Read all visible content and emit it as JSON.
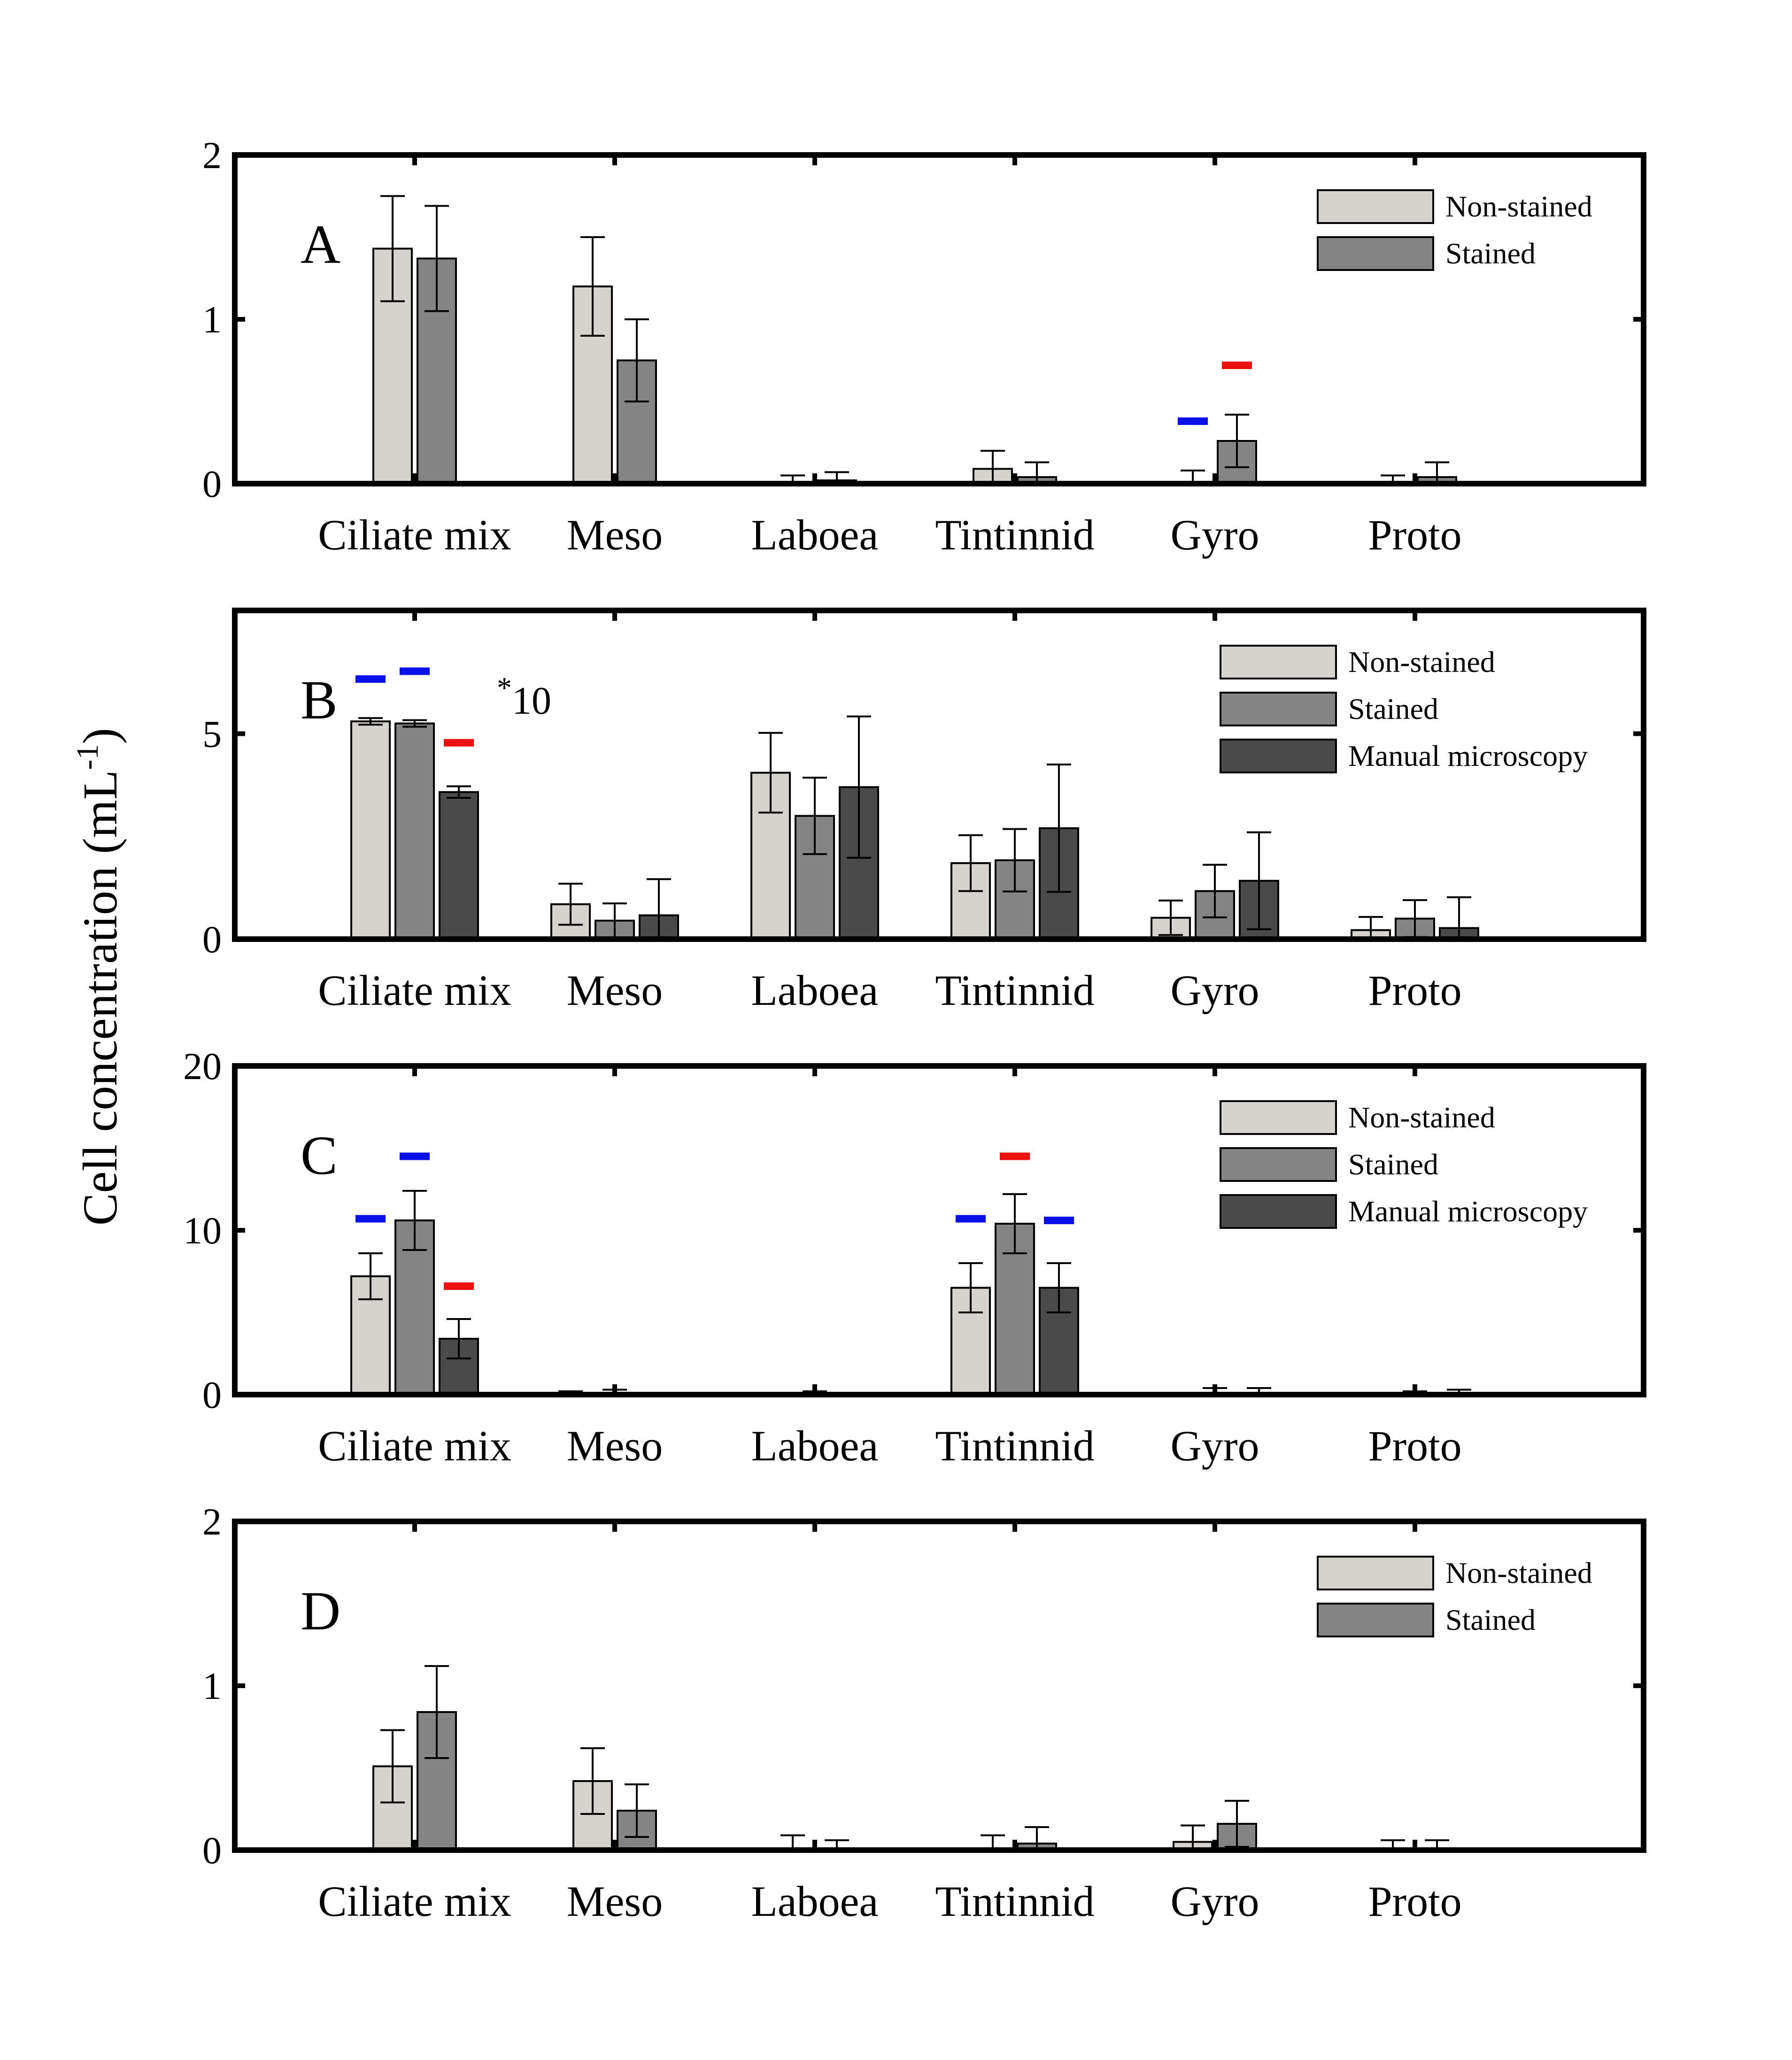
{
  "figure": {
    "ylabel_main": "Cell concentration (mL",
    "ylabel_sup": "-1",
    "ylabel_close": ")"
  },
  "colors": {
    "non_stained": "#d6d3ce",
    "stained": "#848484",
    "manual": "#4a4a4a",
    "marker_blue": "#0a10e8",
    "marker_red": "#ee1111"
  },
  "chart_data": [
    {
      "type": "bar",
      "panel": "A",
      "categories": [
        "Ciliate mix",
        "Meso",
        "Laboea",
        "Tintinnid",
        "Gyro",
        "Proto"
      ],
      "ylim": [
        0,
        2
      ],
      "yticks": [
        0,
        1,
        2
      ],
      "grid": false,
      "legend": "top-right",
      "series": [
        {
          "name": "Non-stained",
          "key": "non_stained",
          "values": [
            1.43,
            1.2,
            0.0,
            0.09,
            0.0,
            0.0
          ],
          "errors": [
            0.32,
            0.3,
            0.05,
            0.11,
            0.08,
            0.05
          ]
        },
        {
          "name": "Stained",
          "key": "stained",
          "values": [
            1.37,
            0.75,
            0.02,
            0.04,
            0.26,
            0.04
          ],
          "errors": [
            0.32,
            0.25,
            0.05,
            0.09,
            0.16,
            0.09
          ]
        }
      ],
      "markers": [
        {
          "category": 4,
          "series": 0,
          "value": 0.38,
          "color": "marker_blue"
        },
        {
          "category": 4,
          "series": 1,
          "value": 0.72,
          "color": "marker_red"
        }
      ]
    },
    {
      "type": "bar",
      "panel": "B",
      "categories": [
        "Ciliate mix",
        "Meso",
        "Laboea",
        "Tintinnid",
        "Gyro",
        "Proto"
      ],
      "ylim": [
        0,
        8
      ],
      "yticks": [
        0,
        5
      ],
      "grid": false,
      "legend": "top-right",
      "annotation": {
        "star": "*",
        "text": "10"
      },
      "series": [
        {
          "name": "Non-stained",
          "key": "non_stained",
          "values": [
            5.3,
            0.85,
            4.05,
            1.85,
            0.52,
            0.22
          ],
          "errors": [
            0.08,
            0.5,
            0.97,
            0.68,
            0.42,
            0.32
          ]
        },
        {
          "name": "Stained",
          "key": "stained",
          "values": [
            5.25,
            0.45,
            3.0,
            1.92,
            1.17,
            0.5
          ],
          "errors": [
            0.08,
            0.42,
            0.93,
            0.76,
            0.64,
            0.45
          ]
        },
        {
          "name": "Manual microscopy",
          "key": "manual",
          "values": [
            3.58,
            0.58,
            3.7,
            2.7,
            1.42,
            0.27
          ],
          "errors": [
            0.14,
            0.88,
            1.72,
            1.55,
            1.18,
            0.75
          ]
        }
      ],
      "markers": [
        {
          "category": 0,
          "series": 0,
          "value": 6.33,
          "color": "marker_blue"
        },
        {
          "category": 0,
          "series": 1,
          "value": 6.52,
          "color": "marker_blue"
        },
        {
          "category": 0,
          "series": 2,
          "value": 4.78,
          "color": "marker_red"
        }
      ]
    },
    {
      "type": "bar",
      "panel": "C",
      "categories": [
        "Ciliate mix",
        "Meso",
        "Laboea",
        "Tintinnid",
        "Gyro",
        "Proto"
      ],
      "ylim": [
        0,
        20
      ],
      "yticks": [
        0,
        10,
        20
      ],
      "grid": false,
      "legend": "top-right",
      "series": [
        {
          "name": "Non-stained",
          "key": "non_stained",
          "values": [
            7.2,
            0.0,
            0.0,
            6.5,
            0.0,
            0.0
          ],
          "errors": [
            1.4,
            0.2,
            0.1,
            1.5,
            0.1,
            0.1
          ]
        },
        {
          "name": "Stained",
          "key": "stained",
          "values": [
            10.6,
            0.0,
            0.0,
            10.4,
            0.0,
            0.0
          ],
          "errors": [
            1.8,
            0.3,
            0.2,
            1.8,
            0.4,
            0.2
          ]
        },
        {
          "name": "Manual microscopy",
          "key": "manual",
          "values": [
            3.4,
            0.0,
            0.0,
            6.5,
            0.0,
            0.0
          ],
          "errors": [
            1.2,
            0.1,
            0.1,
            1.5,
            0.4,
            0.3
          ]
        }
      ],
      "markers": [
        {
          "category": 0,
          "series": 0,
          "value": 10.7,
          "color": "marker_blue"
        },
        {
          "category": 0,
          "series": 1,
          "value": 14.5,
          "color": "marker_blue"
        },
        {
          "category": 0,
          "series": 2,
          "value": 6.6,
          "color": "marker_red"
        },
        {
          "category": 3,
          "series": 0,
          "value": 10.7,
          "color": "marker_blue"
        },
        {
          "category": 3,
          "series": 1,
          "value": 14.5,
          "color": "marker_red"
        },
        {
          "category": 3,
          "series": 2,
          "value": 10.6,
          "color": "marker_blue"
        }
      ]
    },
    {
      "type": "bar",
      "panel": "D",
      "categories": [
        "Ciliate mix",
        "Meso",
        "Laboea",
        "Tintinnid",
        "Gyro",
        "Proto"
      ],
      "ylim": [
        0,
        2
      ],
      "yticks": [
        0,
        1,
        2
      ],
      "grid": false,
      "legend": "top-right",
      "series": [
        {
          "name": "Non-stained",
          "key": "non_stained",
          "values": [
            0.51,
            0.42,
            0.0,
            0.0,
            0.05,
            0.0
          ],
          "errors": [
            0.22,
            0.2,
            0.09,
            0.09,
            0.1,
            0.06
          ]
        },
        {
          "name": "Stained",
          "key": "stained",
          "values": [
            0.84,
            0.24,
            0.0,
            0.04,
            0.16,
            0.0
          ],
          "errors": [
            0.28,
            0.16,
            0.06,
            0.1,
            0.14,
            0.06
          ]
        }
      ],
      "markers": []
    }
  ]
}
